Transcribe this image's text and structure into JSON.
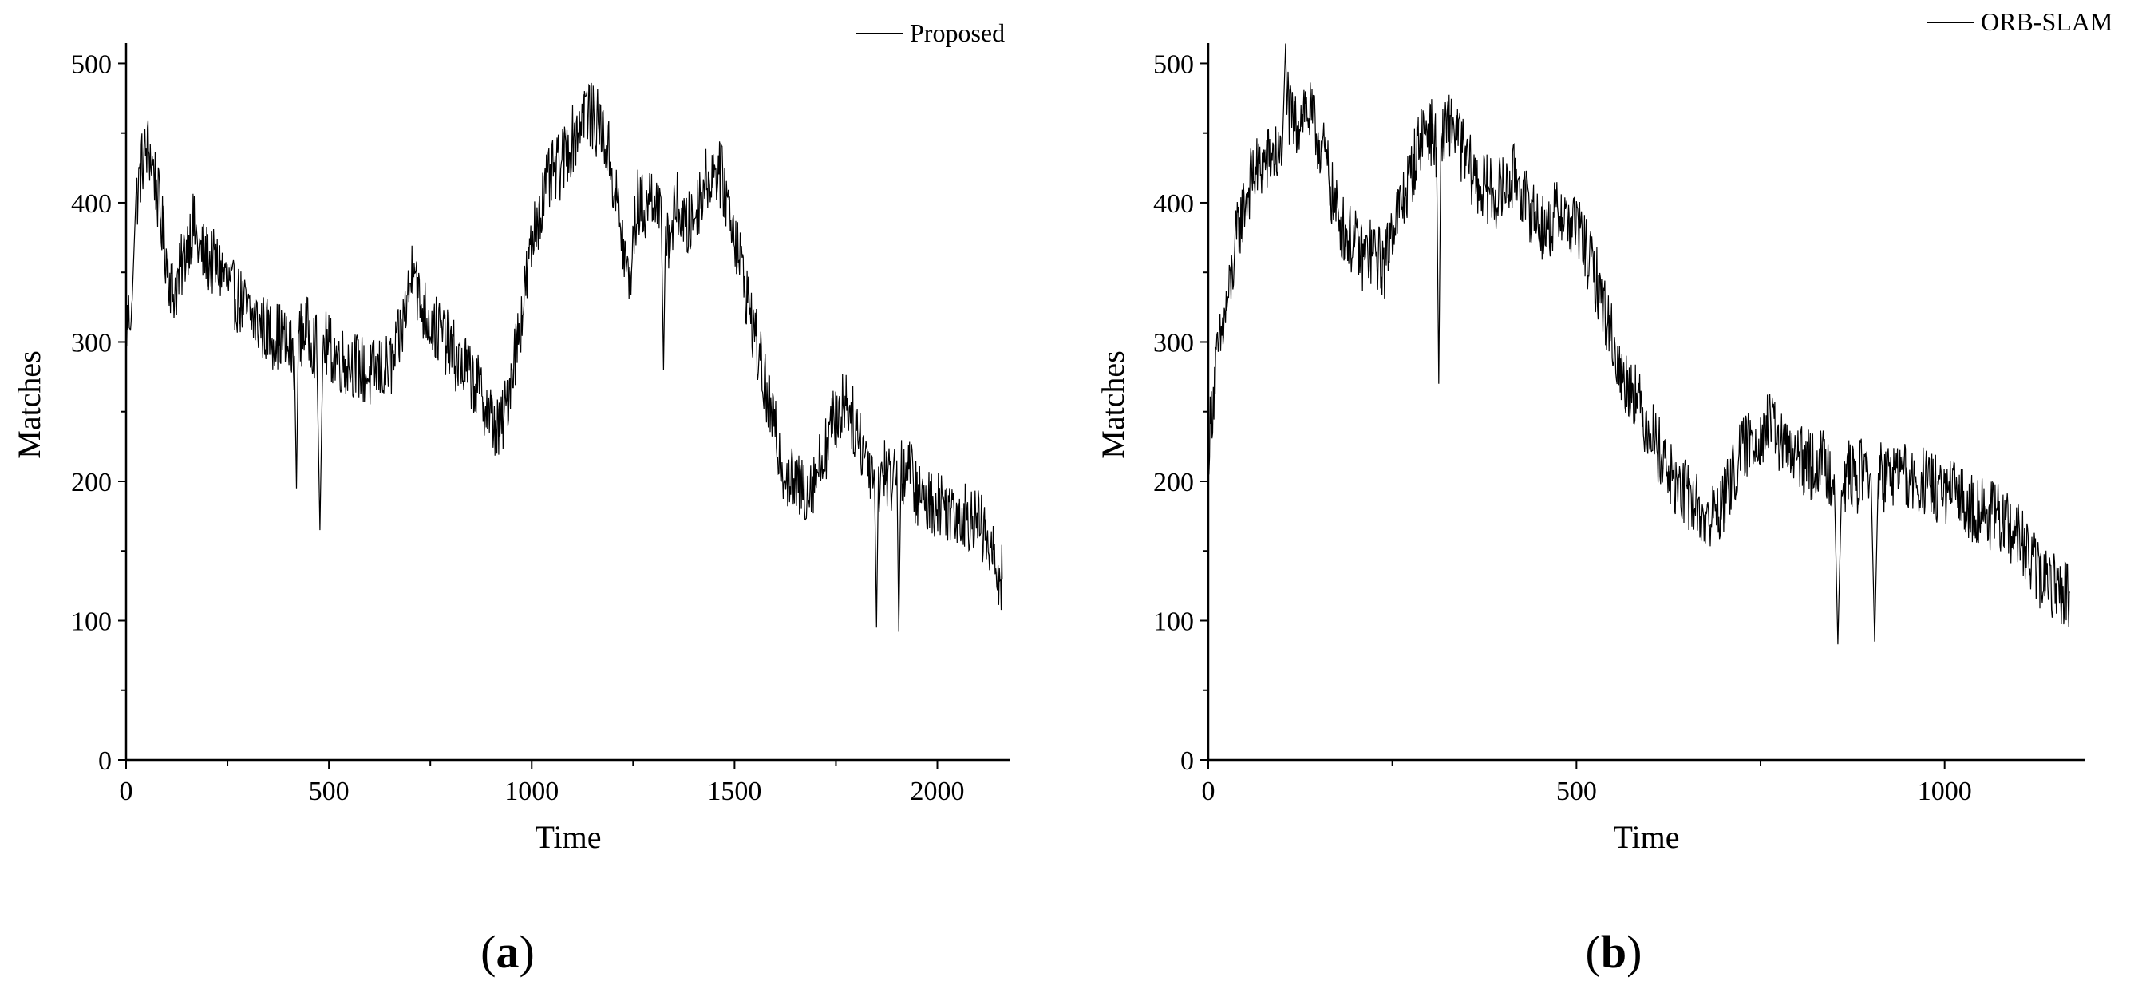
{
  "chart_data": [
    {
      "type": "line",
      "panel_label": "(a)",
      "panel_letter": "a",
      "xlabel": "Time",
      "ylabel": "Matches",
      "xlim": [
        0,
        2180
      ],
      "ylim": [
        0,
        510
      ],
      "x_ticks": [
        0,
        500,
        1000,
        1500,
        2000
      ],
      "y_ticks": [
        0,
        100,
        200,
        300,
        400,
        500
      ],
      "grid": false,
      "legend_position": "top-right",
      "series": [
        {
          "name": "Proposed",
          "color": "#000000",
          "points": [
            [
              0,
              310
            ],
            [
              15,
              330
            ],
            [
              25,
              400
            ],
            [
              40,
              430
            ],
            [
              55,
              440
            ],
            [
              70,
              420
            ],
            [
              85,
              390
            ],
            [
              100,
              360
            ],
            [
              115,
              335
            ],
            [
              130,
              345
            ],
            [
              150,
              370
            ],
            [
              165,
              385
            ],
            [
              180,
              365
            ],
            [
              200,
              360
            ],
            [
              220,
              355
            ],
            [
              240,
              350
            ],
            [
              260,
              335
            ],
            [
              280,
              330
            ],
            [
              300,
              320
            ],
            [
              320,
              315
            ],
            [
              340,
              310
            ],
            [
              360,
              305
            ],
            [
              380,
              305
            ],
            [
              400,
              295
            ],
            [
              415,
              290
            ],
            [
              420,
              195
            ],
            [
              425,
              300
            ],
            [
              440,
              310
            ],
            [
              455,
              305
            ],
            [
              470,
              295
            ],
            [
              478,
              165
            ],
            [
              485,
              300
            ],
            [
              500,
              295
            ],
            [
              520,
              290
            ],
            [
              540,
              285
            ],
            [
              560,
              285
            ],
            [
              580,
              280
            ],
            [
              600,
              275
            ],
            [
              620,
              280
            ],
            [
              640,
              280
            ],
            [
              660,
              285
            ],
            [
              680,
              310
            ],
            [
              700,
              340
            ],
            [
              710,
              370
            ],
            [
              720,
              330
            ],
            [
              740,
              320
            ],
            [
              760,
              310
            ],
            [
              780,
              305
            ],
            [
              800,
              295
            ],
            [
              820,
              285
            ],
            [
              840,
              280
            ],
            [
              860,
              270
            ],
            [
              880,
              260
            ],
            [
              900,
              245
            ],
            [
              920,
              235
            ],
            [
              935,
              250
            ],
            [
              950,
              280
            ],
            [
              970,
              310
            ],
            [
              990,
              350
            ],
            [
              1010,
              385
            ],
            [
              1030,
              405
            ],
            [
              1050,
              420
            ],
            [
              1070,
              425
            ],
            [
              1090,
              440
            ],
            [
              1110,
              450
            ],
            [
              1130,
              470
            ],
            [
              1150,
              460
            ],
            [
              1170,
              455
            ],
            [
              1190,
              435
            ],
            [
              1210,
              400
            ],
            [
              1225,
              370
            ],
            [
              1240,
              340
            ],
            [
              1260,
              400
            ],
            [
              1280,
              395
            ],
            [
              1300,
              410
            ],
            [
              1320,
              380
            ],
            [
              1325,
              280
            ],
            [
              1330,
              385
            ],
            [
              1340,
              375
            ],
            [
              1360,
              400
            ],
            [
              1380,
              380
            ],
            [
              1400,
              390
            ],
            [
              1420,
              410
            ],
            [
              1440,
              420
            ],
            [
              1460,
              425
            ],
            [
              1480,
              405
            ],
            [
              1500,
              380
            ],
            [
              1520,
              350
            ],
            [
              1540,
              320
            ],
            [
              1560,
              290
            ],
            [
              1580,
              260
            ],
            [
              1600,
              235
            ],
            [
              1620,
              210
            ],
            [
              1640,
              200
            ],
            [
              1660,
              195
            ],
            [
              1680,
              195
            ],
            [
              1700,
              205
            ],
            [
              1720,
              220
            ],
            [
              1740,
              240
            ],
            [
              1760,
              250
            ],
            [
              1775,
              262
            ],
            [
              1790,
              245
            ],
            [
              1810,
              230
            ],
            [
              1830,
              215
            ],
            [
              1845,
              205
            ],
            [
              1850,
              95
            ],
            [
              1855,
              200
            ],
            [
              1870,
              210
            ],
            [
              1885,
              200
            ],
            [
              1900,
              215
            ],
            [
              1905,
              92
            ],
            [
              1910,
              205
            ],
            [
              1930,
              210
            ],
            [
              1950,
              190
            ],
            [
              1970,
              185
            ],
            [
              1990,
              185
            ],
            [
              2010,
              185
            ],
            [
              2030,
              180
            ],
            [
              2050,
              180
            ],
            [
              2070,
              175
            ],
            [
              2090,
              175
            ],
            [
              2110,
              165
            ],
            [
              2130,
              150
            ],
            [
              2145,
              140
            ],
            [
              2160,
              130
            ]
          ]
        }
      ]
    },
    {
      "type": "line",
      "panel_label": "(b)",
      "panel_letter": "b",
      "xlabel": "Time",
      "ylabel": "Matches",
      "xlim": [
        0,
        1190
      ],
      "ylim": [
        0,
        510
      ],
      "x_ticks": [
        0,
        500,
        1000
      ],
      "y_ticks": [
        0,
        100,
        200,
        300,
        400,
        500
      ],
      "grid": false,
      "legend_position": "top-right",
      "series": [
        {
          "name": "ORB-SLAM",
          "color": "#000000",
          "points": [
            [
              0,
              225
            ],
            [
              10,
              280
            ],
            [
              20,
              310
            ],
            [
              30,
              340
            ],
            [
              40,
              380
            ],
            [
              50,
              400
            ],
            [
              60,
              420
            ],
            [
              70,
              425
            ],
            [
              80,
              430
            ],
            [
              90,
              435
            ],
            [
              100,
              430
            ],
            [
              105,
              500
            ],
            [
              110,
              460
            ],
            [
              120,
              455
            ],
            [
              130,
              470
            ],
            [
              140,
              460
            ],
            [
              150,
              445
            ],
            [
              160,
              430
            ],
            [
              170,
              400
            ],
            [
              180,
              385
            ],
            [
              190,
              375
            ],
            [
              200,
              370
            ],
            [
              210,
              360
            ],
            [
              220,
              365
            ],
            [
              230,
              360
            ],
            [
              240,
              355
            ],
            [
              250,
              385
            ],
            [
              260,
              395
            ],
            [
              270,
              410
            ],
            [
              280,
              430
            ],
            [
              290,
              450
            ],
            [
              300,
              455
            ],
            [
              310,
              440
            ],
            [
              313,
              270
            ],
            [
              316,
              440
            ],
            [
              330,
              460
            ],
            [
              340,
              445
            ],
            [
              350,
              430
            ],
            [
              360,
              420
            ],
            [
              370,
              410
            ],
            [
              380,
              410
            ],
            [
              390,
              405
            ],
            [
              400,
              410
            ],
            [
              410,
              415
            ],
            [
              420,
              420
            ],
            [
              430,
              400
            ],
            [
              440,
              395
            ],
            [
              450,
              385
            ],
            [
              460,
              380
            ],
            [
              470,
              390
            ],
            [
              480,
              395
            ],
            [
              490,
              385
            ],
            [
              500,
              385
            ],
            [
              510,
              370
            ],
            [
              520,
              355
            ],
            [
              530,
              340
            ],
            [
              540,
              320
            ],
            [
              550,
              300
            ],
            [
              560,
              275
            ],
            [
              570,
              270
            ],
            [
              580,
              265
            ],
            [
              590,
              245
            ],
            [
              600,
              240
            ],
            [
              610,
              225
            ],
            [
              620,
              215
            ],
            [
              630,
              200
            ],
            [
              640,
              195
            ],
            [
              650,
              190
            ],
            [
              660,
              185
            ],
            [
              670,
              175
            ],
            [
              680,
              170
            ],
            [
              690,
              180
            ],
            [
              700,
              185
            ],
            [
              710,
              200
            ],
            [
              720,
              215
            ],
            [
              730,
              225
            ],
            [
              740,
              230
            ],
            [
              750,
              235
            ],
            [
              760,
              240
            ],
            [
              770,
              235
            ],
            [
              780,
              225
            ],
            [
              790,
              220
            ],
            [
              800,
              215
            ],
            [
              810,
              215
            ],
            [
              820,
              210
            ],
            [
              830,
              215
            ],
            [
              840,
              210
            ],
            [
              850,
              205
            ],
            [
              855,
              83
            ],
            [
              860,
              200
            ],
            [
              870,
              205
            ],
            [
              880,
              200
            ],
            [
              890,
              210
            ],
            [
              900,
              205
            ],
            [
              905,
              85
            ],
            [
              910,
              205
            ],
            [
              920,
              200
            ],
            [
              930,
              205
            ],
            [
              940,
              210
            ],
            [
              950,
              200
            ],
            [
              960,
              195
            ],
            [
              970,
              200
            ],
            [
              980,
              195
            ],
            [
              990,
              195
            ],
            [
              1000,
              190
            ],
            [
              1010,
              190
            ],
            [
              1020,
              190
            ],
            [
              1030,
              185
            ],
            [
              1040,
              180
            ],
            [
              1050,
              180
            ],
            [
              1060,
              175
            ],
            [
              1070,
              175
            ],
            [
              1080,
              170
            ],
            [
              1090,
              165
            ],
            [
              1100,
              160
            ],
            [
              1110,
              150
            ],
            [
              1120,
              140
            ],
            [
              1130,
              130
            ],
            [
              1140,
              130
            ],
            [
              1150,
              125
            ],
            [
              1160,
              120
            ],
            [
              1170,
              120
            ]
          ]
        }
      ]
    }
  ]
}
